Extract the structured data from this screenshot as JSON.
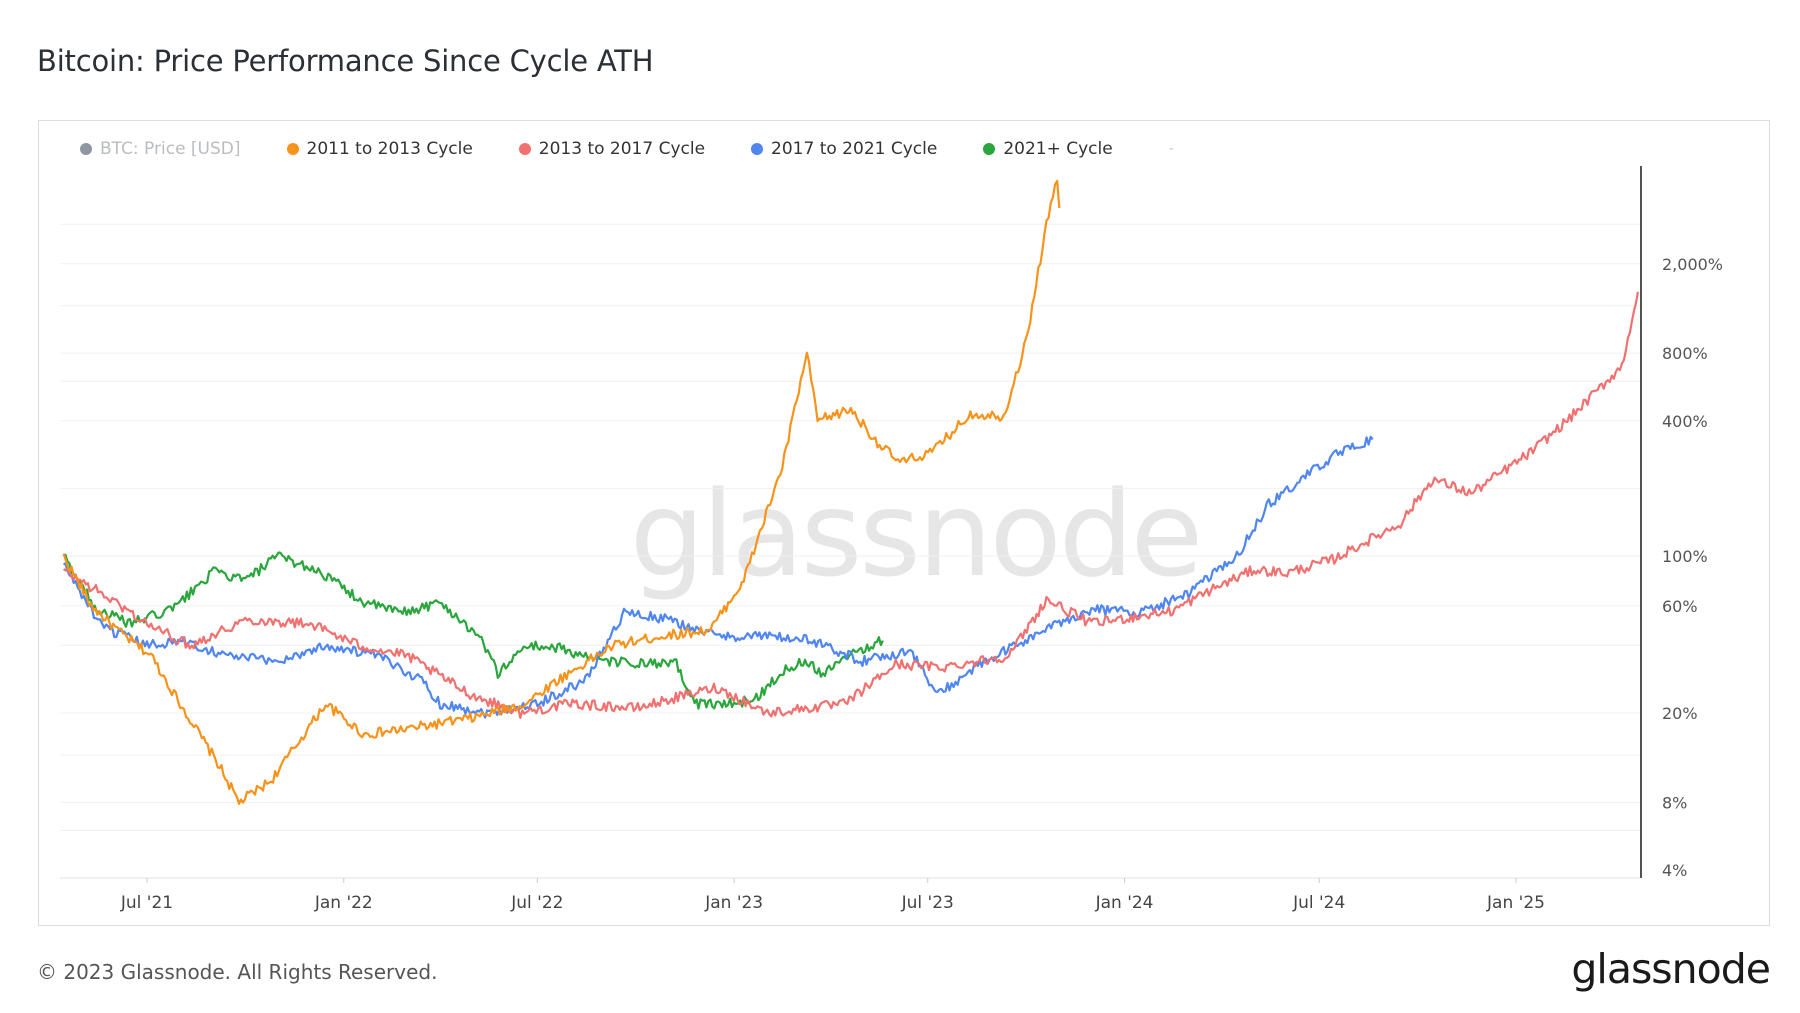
{
  "title": "Bitcoin: Price Performance Since Cycle ATH",
  "footer": "© 2023 Glassnode. All Rights Reserved.",
  "brand": "glassnode",
  "watermark": "glassnode",
  "legend": [
    {
      "label": "BTC: Price [USD]",
      "color": "#8e979f",
      "muted": true
    },
    {
      "label": "2011 to 2013 Cycle",
      "color": "#f7931a",
      "muted": false
    },
    {
      "label": "2013 to 2017 Cycle",
      "color": "#f0716f",
      "muted": false
    },
    {
      "label": "2017 to 2021 Cycle",
      "color": "#4f86f0",
      "muted": false
    },
    {
      "label": "2021+ Cycle",
      "color": "#2aa63c",
      "muted": false
    }
  ],
  "legend_trailing": "-",
  "chart_data": {
    "type": "line",
    "y_scale": "log",
    "x_ticks": [
      "Jul '21",
      "Jan '22",
      "Jul '22",
      "Jan '23",
      "Jul '23",
      "Jan '24",
      "Jul '24",
      "Jan '25"
    ],
    "y_ticks": [
      "2,000%",
      "800%",
      "400%",
      "100%",
      "60%",
      "20%",
      "8%",
      "4%"
    ],
    "y_tick_values": [
      2000,
      800,
      400,
      100,
      60,
      20,
      8,
      4
    ],
    "grid": true,
    "legend_position": "top-left",
    "series": [
      {
        "name": "2011 to 2013 Cycle",
        "color": "#f7931a",
        "x": [
          "2021-04-14",
          "2021-05-10",
          "2021-06-05",
          "2021-07-05",
          "2021-08-01",
          "2021-09-05",
          "2021-09-25",
          "2021-10-25",
          "2021-12-15",
          "2022-01-20",
          "2022-03-01",
          "2022-05-01",
          "2022-06-20",
          "2022-07-15",
          "2022-09-10",
          "2022-10-25",
          "2022-12-10",
          "2023-01-10",
          "2023-02-15",
          "2023-03-10",
          "2023-03-20",
          "2023-04-20",
          "2023-05-15",
          "2023-06-05",
          "2023-07-05",
          "2023-08-10",
          "2023-09-10",
          "2023-10-01",
          "2023-10-20",
          "2023-11-01"
        ],
        "y": [
          100,
          60,
          46,
          36,
          22,
          12,
          8,
          10,
          22,
          16,
          17,
          19,
          22,
          27,
          40,
          44,
          47,
          78,
          250,
          800,
          400,
          450,
          320,
          260,
          290,
          430,
          420,
          900,
          3000,
          5200
        ]
      },
      {
        "name": "2013 to 2017 Cycle",
        "color": "#f0716f",
        "x": [
          "2021-04-14",
          "2021-05-20",
          "2021-07-01",
          "2021-08-10",
          "2021-10-01",
          "2021-12-01",
          "2022-01-15",
          "2022-03-01",
          "2022-05-01",
          "2022-06-15",
          "2022-08-01",
          "2022-10-01",
          "2022-12-15",
          "2023-02-01",
          "2023-04-15",
          "2023-06-01",
          "2023-07-15",
          "2023-09-15",
          "2023-10-20",
          "2023-12-01",
          "2024-02-15",
          "2024-03-20",
          "2024-05-01",
          "2024-06-01",
          "2024-07-15",
          "2024-09-15",
          "2024-10-15",
          "2024-11-20",
          "2025-01-15",
          "2025-02-20",
          "2025-04-10",
          "2025-04-25"
        ],
        "y": [
          86,
          68,
          50,
          40,
          52,
          50,
          40,
          36,
          24,
          20,
          22,
          21,
          26,
          20,
          22,
          33,
          32,
          36,
          64,
          50,
          57,
          70,
          87,
          84,
          97,
          140,
          220,
          190,
          290,
          410,
          700,
          1500
        ]
      },
      {
        "name": "2017 to 2021 Cycle",
        "color": "#4f86f0",
        "x": [
          "2021-04-14",
          "2021-05-20",
          "2021-07-01",
          "2021-08-01",
          "2021-09-15",
          "2021-11-01",
          "2021-12-15",
          "2022-02-01",
          "2022-03-15",
          "2022-04-01",
          "2022-05-15",
          "2022-07-01",
          "2022-08-15",
          "2022-09-20",
          "2022-11-01",
          "2022-12-15",
          "2023-02-01",
          "2023-03-15",
          "2023-05-01",
          "2023-06-15",
          "2023-07-10",
          "2023-08-15",
          "2023-10-15",
          "2023-12-01",
          "2024-01-15",
          "2024-03-01",
          "2024-04-15",
          "2024-05-15",
          "2024-06-20",
          "2024-07-15",
          "2024-08-20"
        ],
        "y": [
          92,
          48,
          40,
          42,
          36,
          34,
          40,
          36,
          28,
          22,
          20,
          22,
          28,
          56,
          52,
          44,
          44,
          42,
          34,
          38,
          24,
          32,
          46,
          58,
          56,
          68,
          100,
          170,
          230,
          280,
          330
        ]
      },
      {
        "name": "2021+ Cycle",
        "color": "#2aa63c",
        "x": [
          "2021-04-14",
          "2021-05-15",
          "2021-06-15",
          "2021-07-25",
          "2021-09-01",
          "2021-10-01",
          "2021-11-01",
          "2021-12-10",
          "2022-01-20",
          "2022-02-25",
          "2022-04-01",
          "2022-05-08",
          "2022-05-25",
          "2022-06-20",
          "2022-07-20",
          "2022-09-01",
          "2022-10-15",
          "2022-11-08",
          "2022-11-25",
          "2022-12-30",
          "2023-01-20",
          "2023-02-20",
          "2023-03-10",
          "2023-03-25",
          "2023-04-15",
          "2023-05-20"
        ],
        "y": [
          100,
          58,
          50,
          58,
          85,
          78,
          100,
          85,
          62,
          56,
          62,
          44,
          30,
          40,
          39,
          34,
          33,
          33,
          22,
          22,
          23,
          32,
          34,
          30,
          36,
          42
        ]
      }
    ]
  }
}
